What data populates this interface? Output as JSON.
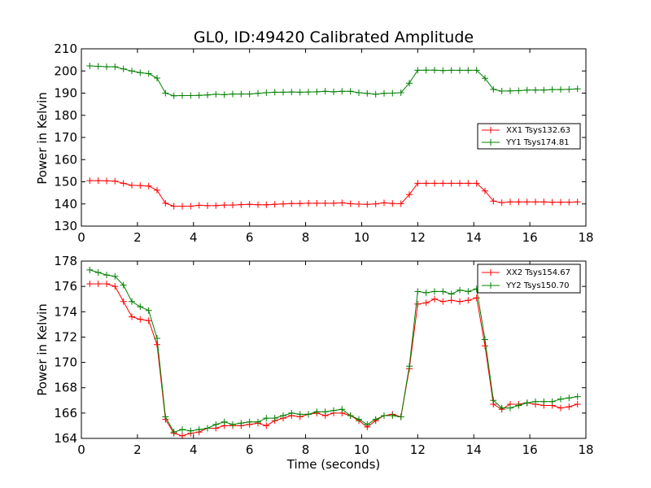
{
  "chart_data": [
    {
      "type": "line",
      "title": "GL0, ID:49420 Calibrated Amplitude",
      "xlabel": "",
      "ylabel": "Power in Kelvin",
      "xlim": [
        0,
        18
      ],
      "ylim": [
        130,
        210
      ],
      "xticks": [
        "0",
        "2",
        "4",
        "6",
        "8",
        "10",
        "12",
        "14",
        "16",
        "18"
      ],
      "yticks": [
        "130",
        "140",
        "150",
        "160",
        "170",
        "180",
        "190",
        "200",
        "210"
      ],
      "grid": false,
      "legend_position": "center-right",
      "x": [
        0.3,
        0.6,
        0.9,
        1.2,
        1.5,
        1.8,
        2.1,
        2.4,
        2.7,
        3.0,
        3.3,
        3.6,
        3.9,
        4.2,
        4.5,
        4.8,
        5.1,
        5.4,
        5.7,
        6.0,
        6.3,
        6.6,
        6.9,
        7.2,
        7.5,
        7.8,
        8.1,
        8.4,
        8.7,
        9.0,
        9.3,
        9.6,
        9.9,
        10.2,
        10.5,
        10.8,
        11.1,
        11.4,
        11.7,
        12.0,
        12.3,
        12.6,
        12.9,
        13.2,
        13.5,
        13.8,
        14.1,
        14.4,
        14.7,
        15.0,
        15.3,
        15.6,
        15.9,
        16.2,
        16.5,
        16.8,
        17.1,
        17.4,
        17.7
      ],
      "series": [
        {
          "name": "XX1 Tsys132.63",
          "color": "#ff0000",
          "values": [
            150.5,
            150.5,
            150.4,
            150.3,
            149.3,
            148.4,
            148.3,
            148.1,
            146.2,
            140.3,
            139.0,
            139.0,
            139.0,
            139.4,
            139.2,
            139.3,
            139.5,
            139.5,
            139.7,
            139.8,
            139.6,
            139.6,
            139.8,
            140.0,
            140.2,
            140.2,
            140.3,
            140.3,
            140.3,
            140.3,
            140.5,
            140.1,
            139.9,
            139.8,
            140.0,
            140.5,
            140.2,
            140.1,
            144.2,
            149.3,
            149.3,
            149.3,
            149.3,
            149.3,
            149.3,
            149.3,
            149.3,
            145.9,
            141.3,
            140.6,
            140.9,
            140.9,
            140.9,
            140.9,
            140.9,
            140.8,
            140.8,
            140.8,
            140.9
          ]
        },
        {
          "name": "YY1 Tsys174.81",
          "color": "#008000",
          "values": [
            202.3,
            202.1,
            201.9,
            201.9,
            200.9,
            200.0,
            199.2,
            198.8,
            196.8,
            190.0,
            188.8,
            188.9,
            188.9,
            189.0,
            189.2,
            189.5,
            189.3,
            189.6,
            189.6,
            189.6,
            189.9,
            190.2,
            190.4,
            190.4,
            190.5,
            190.4,
            190.5,
            190.6,
            190.8,
            190.6,
            190.8,
            190.8,
            190.2,
            189.9,
            189.5,
            189.9,
            190.0,
            190.2,
            194.5,
            200.3,
            200.4,
            200.4,
            200.2,
            200.3,
            200.3,
            200.3,
            200.3,
            196.7,
            191.7,
            190.9,
            191.0,
            191.1,
            191.4,
            191.4,
            191.4,
            191.6,
            191.6,
            191.7,
            191.9
          ]
        }
      ]
    },
    {
      "type": "line",
      "title": "",
      "xlabel": "Time (seconds)",
      "ylabel": "Power in Kelvin",
      "xlim": [
        0,
        18
      ],
      "ylim": [
        164,
        178
      ],
      "xticks": [
        "0",
        "2",
        "4",
        "6",
        "8",
        "10",
        "12",
        "14",
        "16",
        "18"
      ],
      "yticks": [
        "164",
        "166",
        "168",
        "170",
        "172",
        "174",
        "176",
        "178"
      ],
      "grid": false,
      "legend_position": "top-right",
      "x": [
        0.3,
        0.6,
        0.9,
        1.2,
        1.5,
        1.8,
        2.1,
        2.4,
        2.7,
        3.0,
        3.3,
        3.6,
        3.9,
        4.2,
        4.5,
        4.8,
        5.1,
        5.4,
        5.7,
        6.0,
        6.3,
        6.6,
        6.9,
        7.2,
        7.5,
        7.8,
        8.1,
        8.4,
        8.7,
        9.0,
        9.3,
        9.6,
        9.9,
        10.2,
        10.5,
        10.8,
        11.1,
        11.4,
        11.7,
        12.0,
        12.3,
        12.6,
        12.9,
        13.2,
        13.5,
        13.8,
        14.1,
        14.4,
        14.7,
        15.0,
        15.3,
        15.6,
        15.9,
        16.2,
        16.5,
        16.8,
        17.1,
        17.4,
        17.7
      ],
      "series": [
        {
          "name": "XX2 Tsys154.67",
          "color": "#ff0000",
          "values": [
            176.2,
            176.2,
            176.2,
            176.0,
            174.8,
            173.6,
            173.4,
            173.3,
            171.4,
            165.5,
            164.4,
            164.2,
            164.4,
            164.5,
            164.8,
            164.8,
            165.0,
            165.0,
            165.0,
            165.1,
            165.2,
            165.0,
            165.4,
            165.6,
            165.8,
            165.7,
            165.9,
            166.0,
            165.8,
            166.0,
            166.0,
            165.8,
            165.4,
            164.9,
            165.4,
            165.8,
            165.9,
            165.7,
            169.5,
            174.6,
            174.7,
            175.0,
            174.8,
            174.9,
            174.8,
            174.9,
            175.1,
            171.3,
            166.7,
            166.3,
            166.7,
            166.7,
            166.8,
            166.7,
            166.6,
            166.6,
            166.4,
            166.5,
            166.7
          ]
        },
        {
          "name": "YY2 Tsys150.70",
          "color": "#008000",
          "values": [
            177.3,
            177.1,
            176.9,
            176.8,
            176.1,
            174.8,
            174.4,
            174.1,
            171.9,
            165.7,
            164.5,
            164.7,
            164.6,
            164.7,
            164.8,
            165.1,
            165.3,
            165.1,
            165.2,
            165.3,
            165.3,
            165.6,
            165.6,
            165.8,
            166.0,
            165.9,
            165.9,
            166.1,
            166.1,
            166.2,
            166.3,
            165.8,
            165.5,
            165.1,
            165.5,
            165.8,
            165.8,
            165.7,
            169.7,
            175.6,
            175.5,
            175.6,
            175.6,
            175.4,
            175.7,
            175.6,
            175.8,
            171.8,
            167.0,
            166.4,
            166.4,
            166.6,
            166.8,
            166.9,
            166.9,
            166.9,
            167.1,
            167.2,
            167.3
          ]
        }
      ]
    }
  ]
}
